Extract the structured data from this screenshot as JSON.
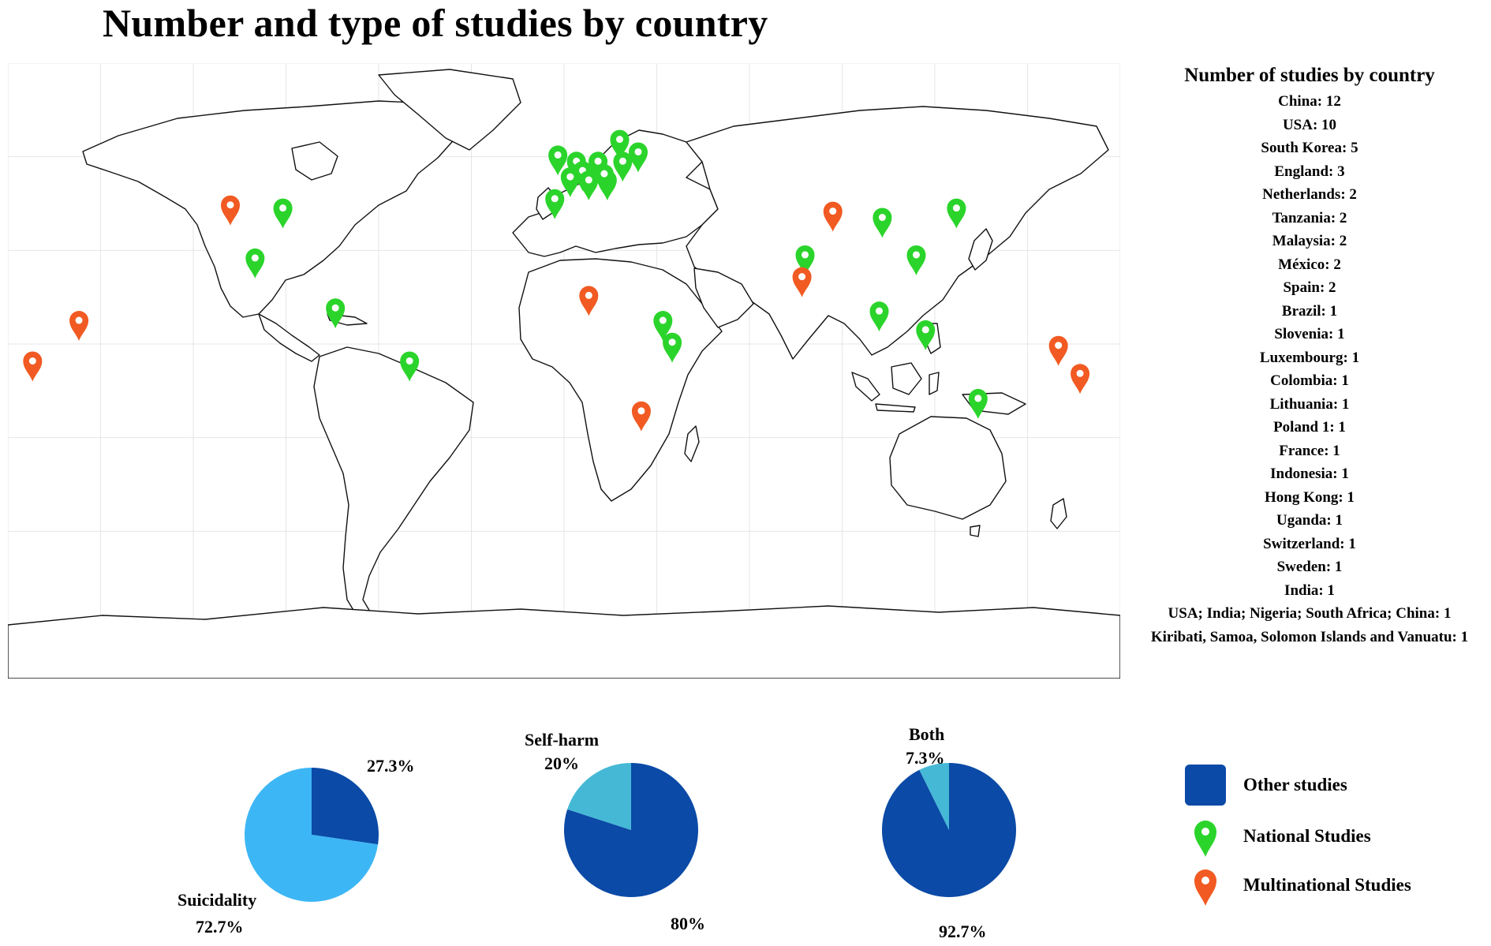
{
  "title": "Number and type of studies by country",
  "colors": {
    "national": "#2bd42b",
    "multinational": "#f15a22",
    "other_studies": "#0b4aa6",
    "suicidality": "#3db6f5",
    "self_harm": "#45b8d6",
    "both": "#45b8d6"
  },
  "counts_panel": {
    "heading": "Number of studies by country",
    "items": [
      "China: 12",
      "USA: 10",
      "South Korea: 5",
      "England: 3",
      "Netherlands: 2",
      "Tanzania: 2",
      "Malaysia: 2",
      "México: 2",
      "Spain: 2",
      "Brazil: 1",
      "Slovenia: 1",
      "Luxembourg: 1",
      "Colombia: 1",
      "Lithuania: 1",
      "Poland 1: 1",
      "France: 1",
      "Indonesia: 1",
      "Hong Kong: 1",
      "Uganda: 1",
      "Switzerland: 1",
      "Sweden: 1",
      "India: 1",
      "USA; India; Nigeria; South Africa; China: 1",
      "Kiribati, Samoa, Solomon Islands and Vanuatu: 1"
    ]
  },
  "markers": [
    {
      "lat": 38,
      "lon": -108,
      "type": "multinational"
    },
    {
      "lat": 37,
      "lon": -91,
      "type": "national"
    },
    {
      "lat": 21,
      "lon": -100,
      "type": "national"
    },
    {
      "lat": 5,
      "lon": -74,
      "type": "national"
    },
    {
      "lat": -12,
      "lon": -50,
      "type": "national"
    },
    {
      "lat": 54,
      "lon": -2,
      "type": "national"
    },
    {
      "lat": 52,
      "lon": 4,
      "type": "national"
    },
    {
      "lat": 49,
      "lon": 6,
      "type": "national"
    },
    {
      "lat": 47,
      "lon": 2,
      "type": "national"
    },
    {
      "lat": 46,
      "lon": 8,
      "type": "national"
    },
    {
      "lat": 46,
      "lon": 14,
      "type": "national"
    },
    {
      "lat": 52,
      "lon": 19,
      "type": "national"
    },
    {
      "lat": 55,
      "lon": 24,
      "type": "national"
    },
    {
      "lat": 59,
      "lon": 18,
      "type": "national"
    },
    {
      "lat": 52,
      "lon": 11,
      "type": "national"
    },
    {
      "lat": 48,
      "lon": 13,
      "type": "national"
    },
    {
      "lat": 40,
      "lon": -3,
      "type": "national"
    },
    {
      "lat": 9,
      "lon": 8,
      "type": "multinational"
    },
    {
      "lat": 1,
      "lon": 32,
      "type": "national"
    },
    {
      "lat": -6,
      "lon": 35,
      "type": "national"
    },
    {
      "lat": -28,
      "lon": 25,
      "type": "multinational"
    },
    {
      "lat": 22,
      "lon": 78,
      "type": "national"
    },
    {
      "lat": 15,
      "lon": 77,
      "type": "multinational"
    },
    {
      "lat": 34,
      "lon": 103,
      "type": "national"
    },
    {
      "lat": 36,
      "lon": 87,
      "type": "multinational"
    },
    {
      "lat": 22,
      "lon": 114,
      "type": "national"
    },
    {
      "lat": 37,
      "lon": 127,
      "type": "national"
    },
    {
      "lat": 4,
      "lon": 102,
      "type": "national"
    },
    {
      "lat": -2,
      "lon": 117,
      "type": "national"
    },
    {
      "lat": -24,
      "lon": 134,
      "type": "national"
    },
    {
      "lat": -7,
      "lon": 160,
      "type": "multinational"
    },
    {
      "lat": -16,
      "lon": 167,
      "type": "multinational"
    },
    {
      "lat": -12,
      "lon": -172,
      "type": "multinational"
    },
    {
      "lat": 1,
      "lon": -157,
      "type": "multinational"
    }
  ],
  "pies": [
    {
      "name": "Suicidality",
      "highlight_pct": 72.7,
      "other_pct": 27.3,
      "label_name": "Suicidality",
      "label_pct": "72.7%",
      "other_label": "27.3%"
    },
    {
      "name": "Self-harm",
      "highlight_pct": 20,
      "other_pct": 80,
      "label_name": "Self-harm",
      "label_pct": "20%",
      "other_label": "80%"
    },
    {
      "name": "Both",
      "highlight_pct": 7.3,
      "other_pct": 92.7,
      "label_name": "Both",
      "label_pct": "7.3%",
      "other_label": "92.7%"
    }
  ],
  "legend": {
    "other_studies": "Other studies",
    "national": "National Studies",
    "multinational": "Multinational Studies"
  }
}
